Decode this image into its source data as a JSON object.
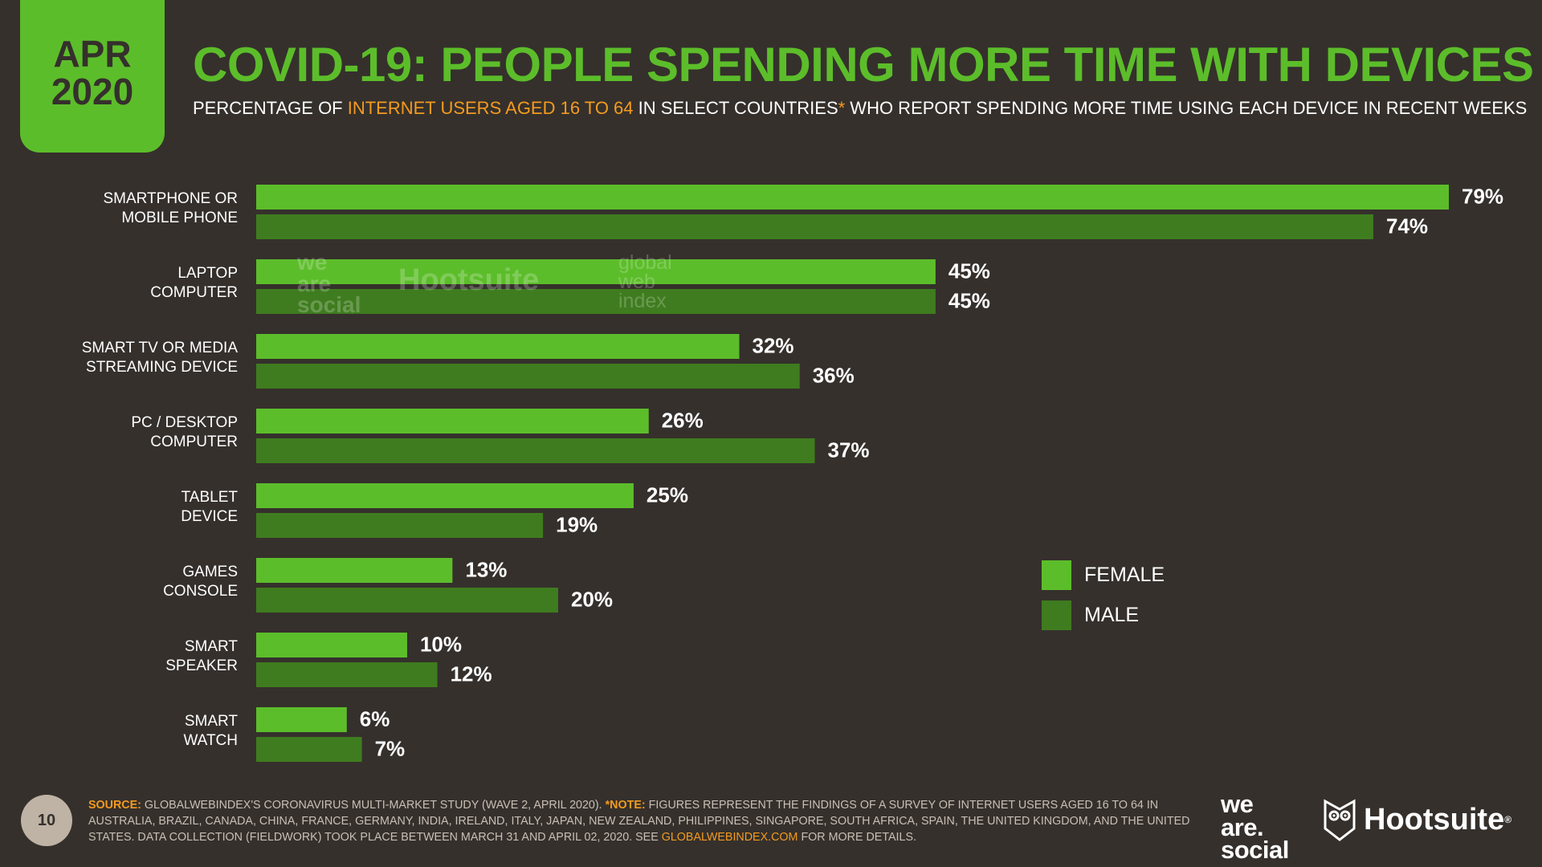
{
  "header": {
    "date_month": "APR",
    "date_year": "2020",
    "title": "COVID-19: PEOPLE SPENDING MORE TIME WITH DEVICES",
    "subtitle_a": "PERCENTAGE OF ",
    "subtitle_highlight": "INTERNET USERS AGED 16 TO 64",
    "subtitle_b": " IN SELECT COUNTRIES",
    "subtitle_asterisk": "*",
    "subtitle_c": " WHO REPORT SPENDING MORE TIME USING EACH DEVICE IN RECENT WEEKS"
  },
  "chart_data": {
    "type": "bar",
    "orientation": "horizontal",
    "categories": [
      [
        "SMARTPHONE OR",
        "MOBILE PHONE"
      ],
      [
        "LAPTOP",
        "COMPUTER"
      ],
      [
        "SMART TV OR MEDIA",
        "STREAMING DEVICE"
      ],
      [
        "PC / DESKTOP",
        "COMPUTER"
      ],
      [
        "TABLET",
        "DEVICE"
      ],
      [
        "GAMES",
        "CONSOLE"
      ],
      [
        "SMART",
        "SPEAKER"
      ],
      [
        "SMART",
        "WATCH"
      ]
    ],
    "series": [
      {
        "name": "FEMALE",
        "color": "#5cbd2a",
        "values": [
          79,
          45,
          32,
          26,
          25,
          13,
          10,
          6
        ]
      },
      {
        "name": "MALE",
        "color": "#3f7c1f",
        "values": [
          74,
          45,
          36,
          37,
          19,
          20,
          12,
          7
        ]
      }
    ],
    "value_suffix": "%",
    "xlim": [
      0,
      79
    ],
    "legend_position": "right"
  },
  "legend": {
    "female_label": "FEMALE",
    "male_label": "MALE",
    "female_color": "#5cbd2a",
    "male_color": "#3f7c1f"
  },
  "watermark": {
    "was_line1": "we",
    "was_line2": "are",
    "was_line3": "social",
    "hootsuite": "Hootsuite",
    "gwi_line1": "global",
    "gwi_line2": "web",
    "gwi_line3": "index"
  },
  "footer": {
    "page_number": "10",
    "source_label": "SOURCE:",
    "source_text": " GLOBALWEBINDEX'S CORONAVIRUS MULTI-MARKET STUDY (WAVE 2, APRIL 2020). ",
    "note_label": "*NOTE:",
    "note_text": " FIGURES REPRESENT THE FINDINGS OF A SURVEY OF INTERNET USERS AGED 16 TO 64 IN AUSTRALIA, BRAZIL, CANADA, CHINA, FRANCE, GERMANY, INDIA, IRELAND, ITALY, JAPAN, NEW ZEALAND, PHILIPPINES, SINGAPORE, SOUTH AFRICA, SPAIN, THE UNITED KINGDOM, AND THE UNITED STATES. DATA COLLECTION (FIELDWORK) TOOK PLACE BETWEEN MARCH 31 AND APRIL 02, 2020. SEE ",
    "link": "GLOBALWEBINDEX.COM",
    "tail": " FOR MORE DETAILS.",
    "logo_was_line1": "we",
    "logo_was_line2": "are.",
    "logo_was_line3": "social",
    "logo_hootsuite": "Hootsuite",
    "logo_hootsuite_mark": "®"
  }
}
